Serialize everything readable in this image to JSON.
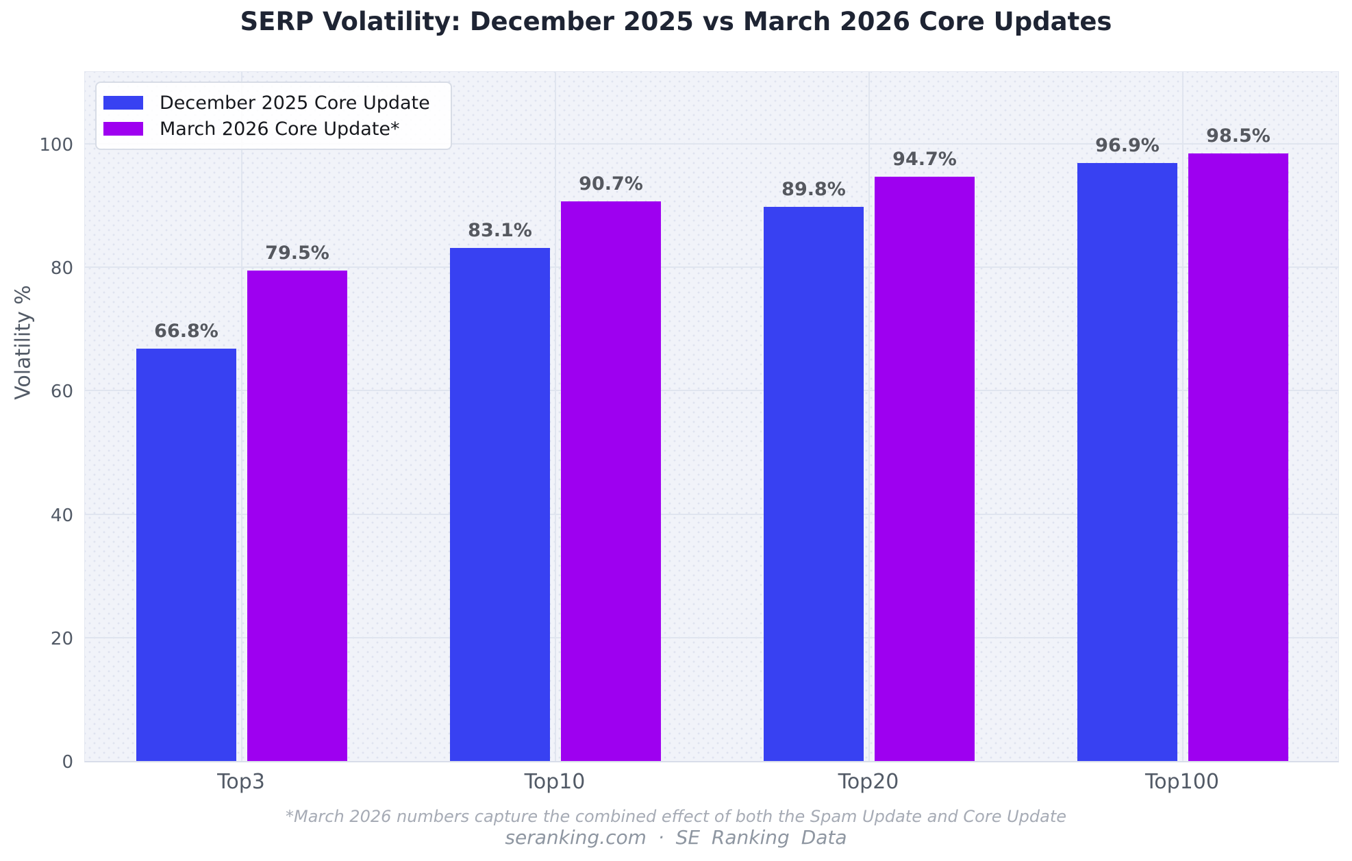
{
  "title": "SERP Volatility: December 2025 vs March 2026 Core Updates",
  "chart_data": {
    "type": "bar",
    "title": "SERP Volatility: December 2025 vs March 2026 Core Updates",
    "categories": [
      "Top3",
      "Top10",
      "Top20",
      "Top100"
    ],
    "series": [
      {
        "name": "December 2025 Core Update",
        "color": "#3841f2",
        "values": [
          66.8,
          83.1,
          89.8,
          96.9
        ]
      },
      {
        "name": "March 2026 Core Update*",
        "color": "#9e00f0",
        "values": [
          79.5,
          90.7,
          94.7,
          98.5
        ]
      }
    ],
    "bar_labels": [
      [
        "66.8%",
        "83.1%",
        "89.8%",
        "96.9%"
      ],
      [
        "79.5%",
        "90.7%",
        "94.7%",
        "98.5%"
      ]
    ],
    "xlabel": "",
    "ylabel": "Volatility %",
    "ytick_values": [
      0,
      20,
      40,
      60,
      80,
      100
    ],
    "ytick_labels": [
      "0",
      "20",
      "40",
      "60",
      "80",
      "100"
    ],
    "ylim": [
      0,
      112
    ],
    "grid": true,
    "legend_position": "upper-left"
  },
  "footnote": "*March 2026 numbers capture the combined effect of both the Spam Update and Core Update",
  "credit": "seranking.com · SE Ranking Data",
  "colors": {
    "series_december": "#3841f2",
    "series_march": "#9e00f0",
    "plot_background": "#f1f3f9",
    "plot_dots": "#dfe3ef",
    "grid_line": "#e0e5ef",
    "title_text": "#1e2433",
    "tick_text": "#525a66",
    "bar_label_text": "#55585f",
    "legend_text": "#16181d",
    "footnote_text": "#a6abb5",
    "credit_text": "#8e96a1"
  }
}
